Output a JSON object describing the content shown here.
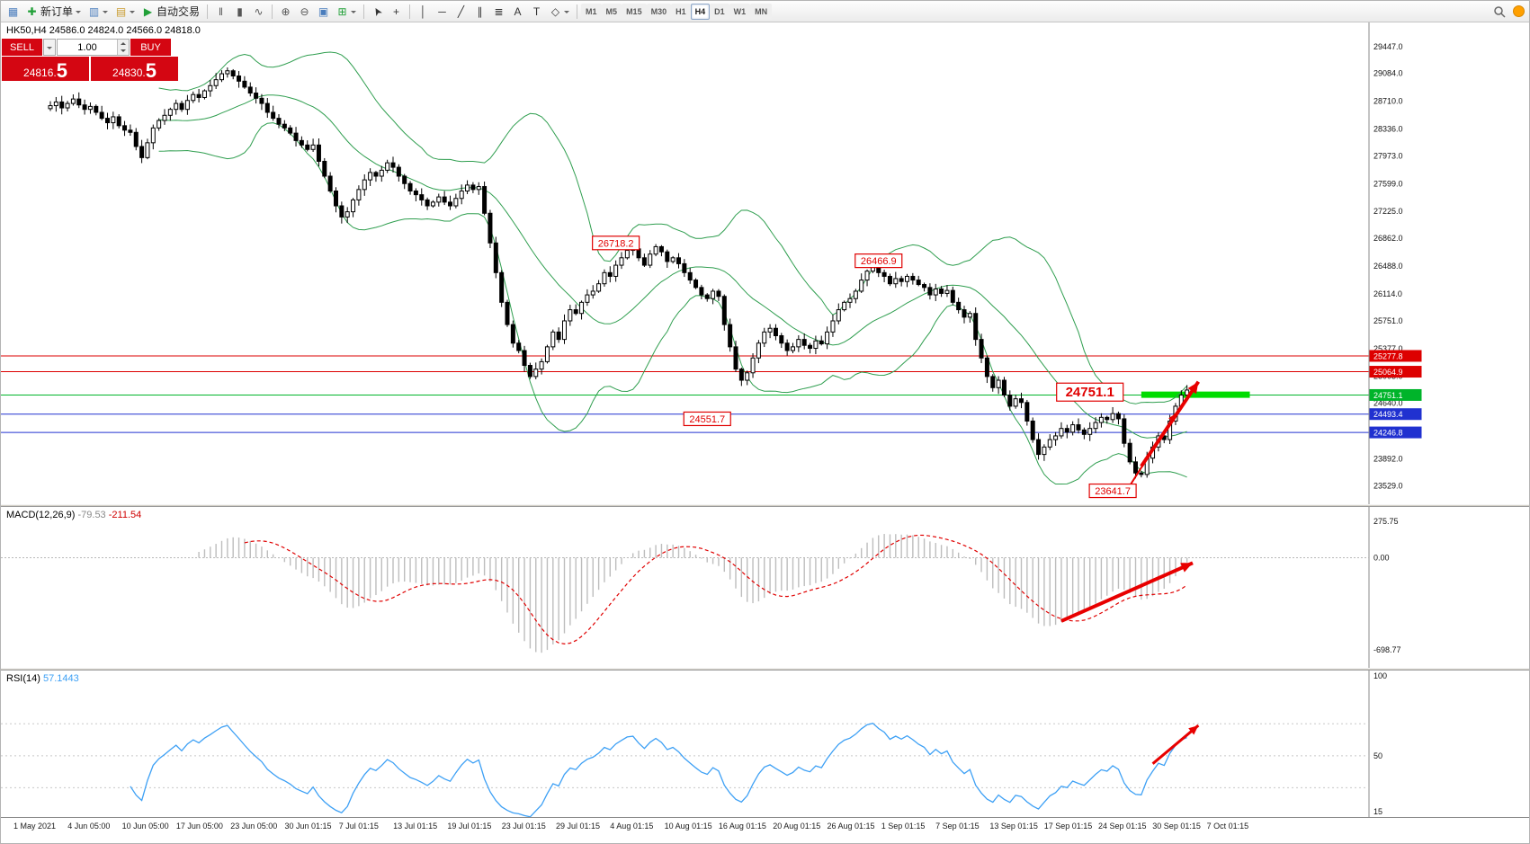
{
  "toolbar": {
    "items": [
      {
        "name": "window-icon",
        "glyph": "▦",
        "color": "#4a7dbd"
      },
      {
        "name": "new-order-button",
        "glyph": "✚",
        "color": "#21a038",
        "label": "新订单",
        "dropdown": true
      },
      {
        "name": "charts-icon",
        "glyph": "▥",
        "color": "#4a7dbd",
        "dropdown": true
      },
      {
        "name": "profiles-icon",
        "glyph": "▤",
        "color": "#c99b2d",
        "dropdown": true
      },
      {
        "name": "autotrade-button",
        "glyph": "▶",
        "color": "#21a038",
        "label": "自动交易"
      },
      {
        "type": "sep"
      },
      {
        "name": "bar-chart-icon",
        "glyph": "‖",
        "color": "#555555"
      },
      {
        "name": "candlestick-chart-icon",
        "glyph": "▮",
        "color": "#555555"
      },
      {
        "name": "line-chart-icon",
        "glyph": "∿",
        "color": "#555555"
      },
      {
        "type": "sep"
      },
      {
        "name": "zoom-in-icon",
        "glyph": "⊕",
        "color": "#555555"
      },
      {
        "name": "zoom-out-icon",
        "glyph": "⊖",
        "color": "#555555"
      },
      {
        "name": "tile-windows-icon",
        "glyph": "▣",
        "color": "#4a7dbd"
      },
      {
        "name": "indicators-icon",
        "glyph": "⊞",
        "color": "#21a038",
        "dropdown": true
      },
      {
        "type": "sep"
      },
      {
        "name": "cursor-icon",
        "glyph": "➤",
        "color": "#333333",
        "rotate": true
      },
      {
        "name": "crosshair-icon",
        "glyph": "+",
        "color": "#333333"
      },
      {
        "type": "sep"
      },
      {
        "name": "vertical-line-icon",
        "glyph": "│",
        "color": "#333333"
      },
      {
        "name": "horizontal-line-icon",
        "glyph": "─",
        "color": "#333333"
      },
      {
        "name": "trendline-icon",
        "glyph": "╱",
        "color": "#333333"
      },
      {
        "name": "channel-icon",
        "glyph": "∥",
        "color": "#333333"
      },
      {
        "name": "fibonacci-icon",
        "glyph": "≣",
        "color": "#333333"
      },
      {
        "name": "text-icon",
        "glyph": "A",
        "color": "#333333"
      },
      {
        "name": "label-icon",
        "glyph": "T",
        "color": "#333333"
      },
      {
        "name": "shapes-icon",
        "glyph": "◇",
        "color": "#333333",
        "dropdown": true
      },
      {
        "type": "sep"
      }
    ],
    "timeframes": [
      "M1",
      "M5",
      "M15",
      "M30",
      "H1",
      "H4",
      "D1",
      "W1",
      "MN"
    ],
    "active_timeframe": "H4",
    "status_color": "#ffa000"
  },
  "trade_panel": {
    "sell_label": "SELL",
    "buy_label": "BUY",
    "volume": "1.00",
    "sell_price_main": "24816.",
    "sell_price_big": "5",
    "buy_price_main": "24830.",
    "buy_price_big": "5",
    "button_color": "#d40612"
  },
  "symbol_header": "HK50,H4 24586.0 24824.0 24566.0 24818.0",
  "chart_data": {
    "type": "candlestick+indicators",
    "symbol": "HK50",
    "timeframe": "H4",
    "closes": [
      28650,
      28700,
      28620,
      28680,
      28740,
      28660,
      28600,
      28640,
      28560,
      28480,
      28420,
      28500,
      28380,
      28320,
      28290,
      28100,
      27950,
      28150,
      28350,
      28450,
      28520,
      28600,
      28680,
      28600,
      28720,
      28800,
      28760,
      28850,
      28920,
      29000,
      29080,
      29120,
      29050,
      28980,
      28900,
      28820,
      28750,
      28680,
      28560,
      28480,
      28400,
      28350,
      28280,
      28180,
      28120,
      28060,
      28120,
      27900,
      27700,
      27500,
      27300,
      27150,
      27220,
      27380,
      27520,
      27650,
      27750,
      27700,
      27780,
      27880,
      27820,
      27700,
      27600,
      27500,
      27450,
      27380,
      27300,
      27350,
      27420,
      27350,
      27300,
      27400,
      27500,
      27580,
      27520,
      27560,
      27200,
      26800,
      26400,
      26000,
      25700,
      25450,
      25350,
      25150,
      25000,
      25100,
      25200,
      25400,
      25600,
      25500,
      25750,
      25900,
      25850,
      26000,
      26100,
      26150,
      26250,
      26400,
      26350,
      26500,
      26600,
      26700,
      26720,
      26600,
      26500,
      26650,
      26750,
      26680,
      26550,
      26600,
      26520,
      26400,
      26300,
      26200,
      26100,
      26050,
      26150,
      26080,
      25700,
      25400,
      25100,
      24950,
      25050,
      25250,
      25450,
      25600,
      25650,
      25550,
      25450,
      25350,
      25400,
      25500,
      25420,
      25380,
      25480,
      25440,
      25600,
      25750,
      25900,
      26000,
      26050,
      26150,
      26300,
      26420,
      26470,
      26400,
      26350,
      26250,
      26320,
      26280,
      26350,
      26300,
      26240,
      26200,
      26100,
      26180,
      26120,
      26160,
      26000,
      25900,
      25800,
      25850,
      25500,
      25250,
      25000,
      24850,
      24950,
      24750,
      24600,
      24700,
      24650,
      24400,
      24150,
      23950,
      24050,
      24150,
      24200,
      24300,
      24250,
      24350,
      24280,
      24220,
      24300,
      24380,
      24450,
      24420,
      24500,
      24430,
      24100,
      23850,
      23700,
      23680,
      23900,
      24050,
      24200,
      24150,
      24400,
      24600,
      24750,
      24818
    ],
    "bollinger": {
      "period": 20,
      "deviation": 2,
      "color": "#2f9e4f"
    },
    "price_axis_labels": [
      29447,
      29084,
      28710,
      28336,
      27973,
      27599,
      27225,
      26862,
      26488,
      26114,
      25751,
      25377,
      25003,
      24640,
      24266,
      23892,
      23529
    ],
    "hlines": [
      {
        "price": 25277.8,
        "color": "#dd0000",
        "badge": "25277.8"
      },
      {
        "price": 25064.9,
        "color": "#dd0000",
        "badge": "25064.9"
      },
      {
        "price": 24751.1,
        "color": "#00b42a",
        "badge": "24751.1"
      },
      {
        "price": 24493.4,
        "color": "#2031d0",
        "badge": "24493.4"
      },
      {
        "price": 24246.8,
        "color": "#2031d0",
        "badge": "24246.8"
      }
    ],
    "labels": [
      {
        "text": "26718.2",
        "i": 99,
        "price": 26800,
        "size": "normal"
      },
      {
        "text": "26466.9",
        "i": 145,
        "price": 26560,
        "size": "normal"
      },
      {
        "text": "24751.1",
        "i": 182,
        "price": 24790,
        "size": "large"
      },
      {
        "text": "24551.7",
        "i": 115,
        "price": 24430,
        "size": "normal"
      },
      {
        "text": "23641.7",
        "i": 186,
        "price": 23460,
        "size": "normal"
      }
    ],
    "green_segment": {
      "price": 24755,
      "from_i": 191,
      "to_i": 210,
      "color": "#00dc00",
      "width": 7
    },
    "arrows_main": [
      {
        "from": {
          "i": 189,
          "p": 23530
        },
        "to": {
          "i": 197,
          "p": 24500
        },
        "width": 2
      },
      {
        "from": {
          "i": 191,
          "p": 23790
        },
        "to": {
          "i": 201,
          "p": 24930
        },
        "width": 4
      }
    ],
    "macd": {
      "label": "MACD(12,26,9)",
      "value_main": "-79.53",
      "value_signal": "-211.54",
      "axis_labels": [
        "275.75",
        "0.00",
        "-698.77"
      ],
      "params": [
        12,
        26,
        9
      ],
      "bar_color": "#bdbdbd",
      "signal_color": "#e00000",
      "arrow": {
        "from": {
          "i": 177,
          "v": -480
        },
        "to": {
          "i": 200,
          "v": -40
        },
        "width": 4
      }
    },
    "rsi": {
      "label": "RSI(14)",
      "value": "57.1443",
      "period": 14,
      "axis_labels": [
        "100",
        "50",
        "15"
      ],
      "levels": [
        70,
        50,
        30
      ],
      "line_color": "#3da0f5",
      "arrow": {
        "from": {
          "i": 193,
          "v": 45
        },
        "to": {
          "i": 201,
          "v": 69
        },
        "width": 3
      }
    },
    "x_axis_labels": [
      "1 May 2021",
      "4 Jun 05:00",
      "10 Jun 05:00",
      "17 Jun 05:00",
      "23 Jun 05:00",
      "30 Jun 01:15",
      "7 Jul 01:15",
      "13 Jul 01:15",
      "19 Jul 01:15",
      "23 Jul 01:15",
      "29 Jul 01:15",
      "4 Aug 01:15",
      "10 Aug 01:15",
      "16 Aug 01:15",
      "20 Aug 01:15",
      "26 Aug 01:15",
      "1 Sep 01:15",
      "7 Sep 01:15",
      "13 Sep 01:15",
      "17 Sep 01:15",
      "24 Sep 01:15",
      "30 Sep 01:15",
      "7 Oct 01:15"
    ],
    "arrow_color": "#e80000"
  }
}
